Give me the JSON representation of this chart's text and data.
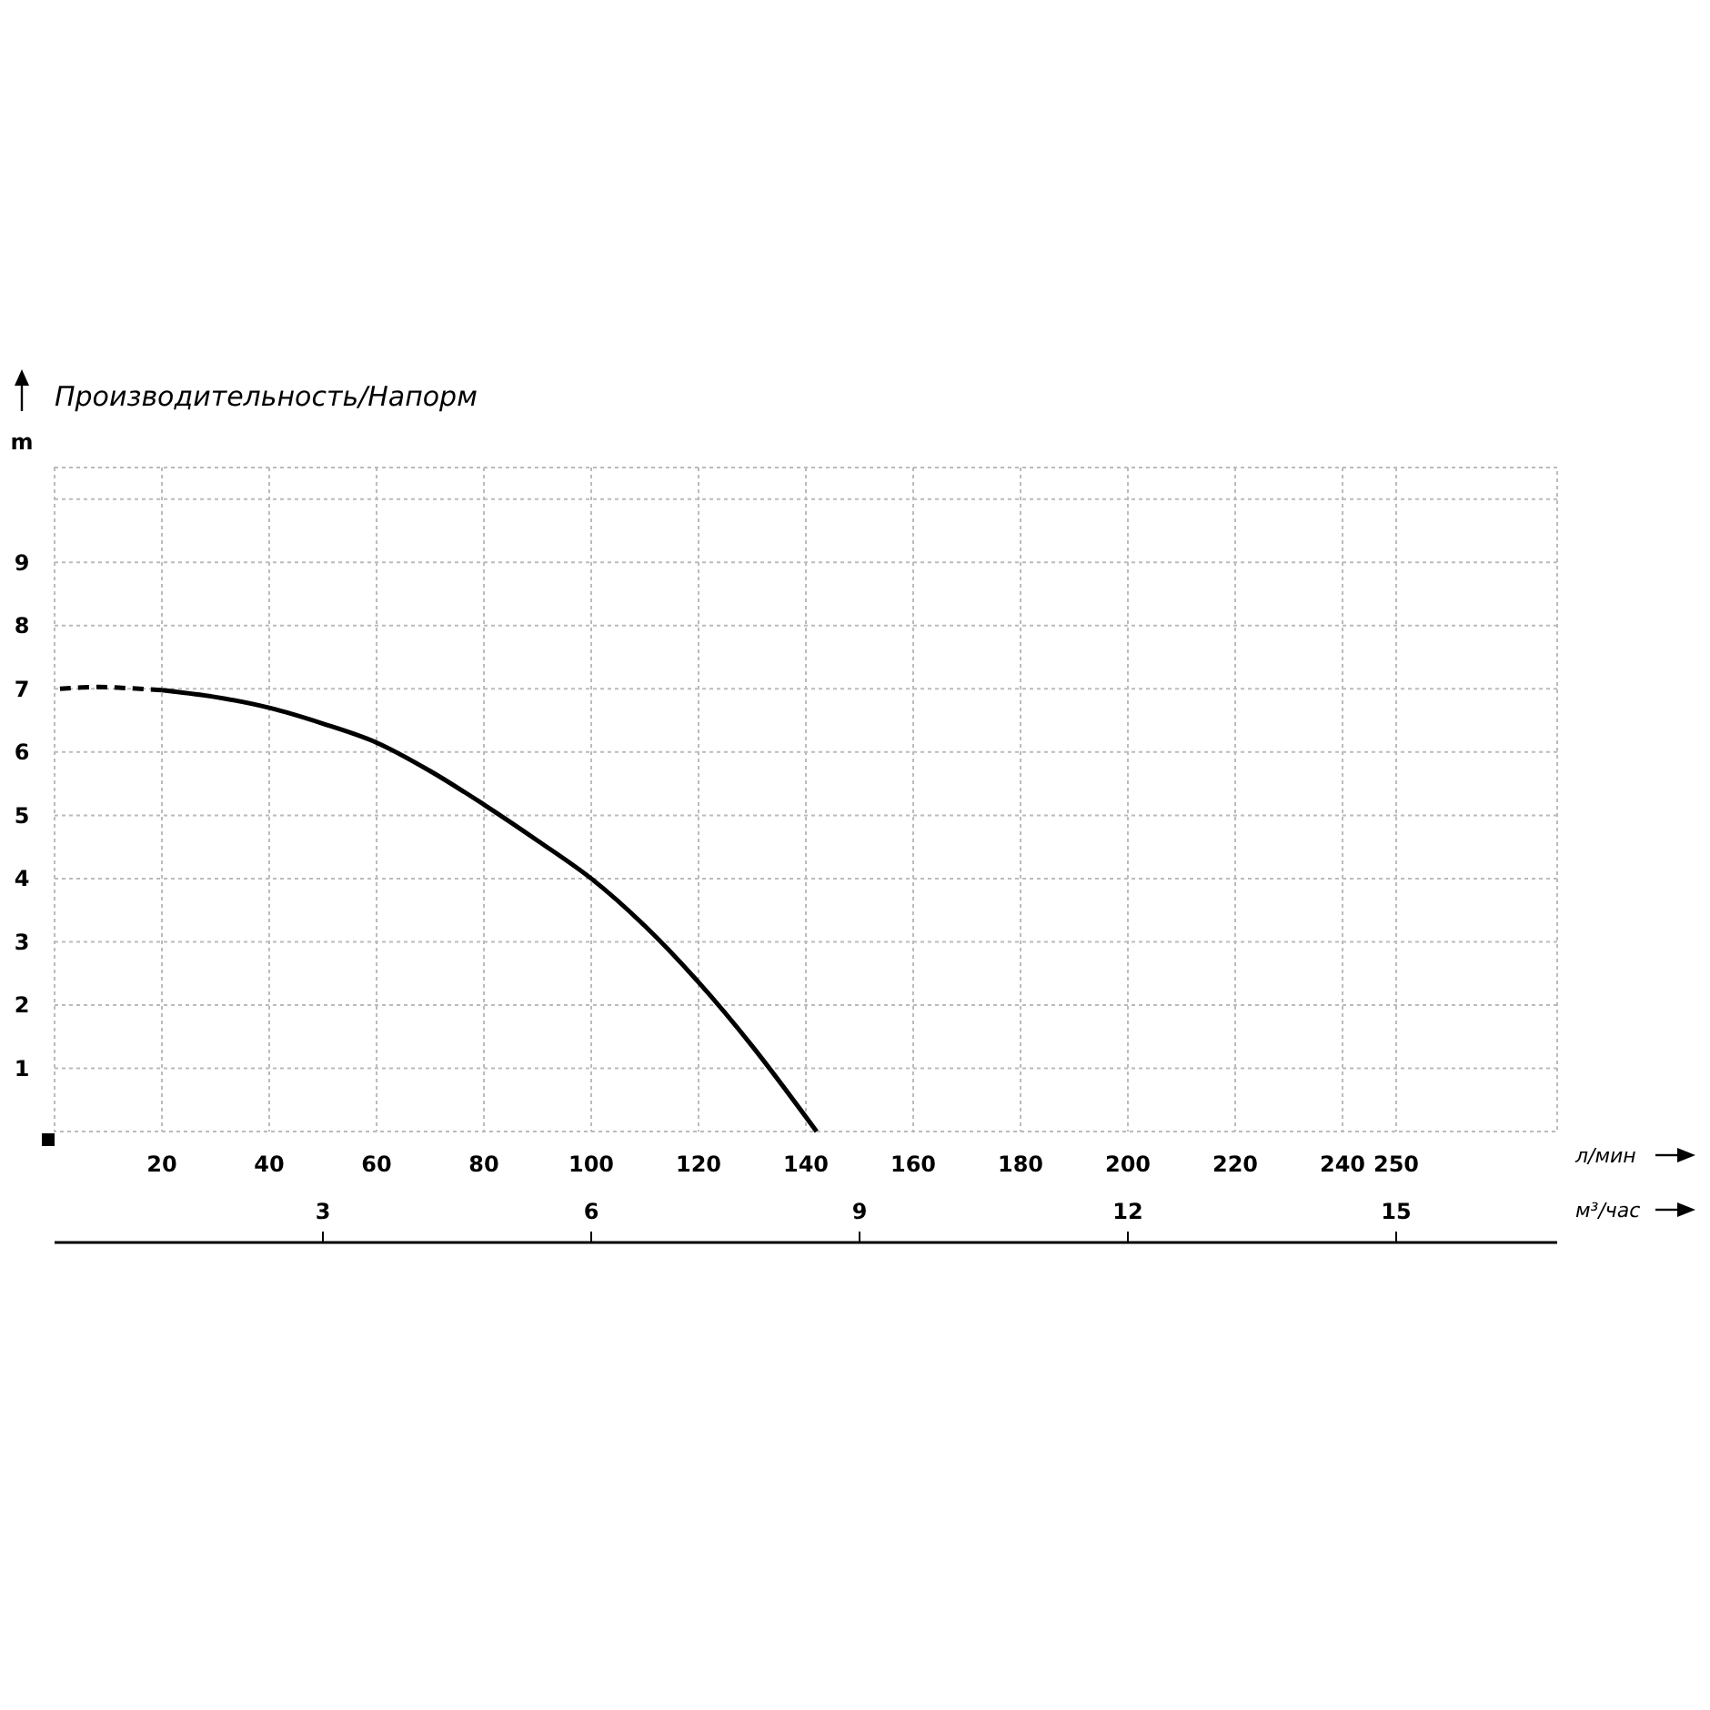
{
  "chart_data": {
    "type": "line",
    "title": "Производительность/Напорм",
    "ylabel": "m",
    "xlabel": "л/мин",
    "x2label": "м³/час",
    "series": [
      {
        "color": "#000000",
        "line_style": "dashed",
        "x": [
          1,
          8,
          14,
          20
        ],
        "values": [
          7.0,
          7.03,
          7.01,
          6.98
        ]
      },
      {
        "color": "#000000",
        "line_style": "solid",
        "x": [
          20,
          30,
          40,
          50,
          60,
          70,
          80,
          90,
          100,
          110,
          120,
          130,
          142
        ],
        "values": [
          6.98,
          6.87,
          6.7,
          6.45,
          6.15,
          5.7,
          5.17,
          4.6,
          4.0,
          3.25,
          2.36,
          1.35,
          0
        ]
      }
    ],
    "xlim": [
      0,
      280
    ],
    "xticks": [
      20,
      40,
      60,
      80,
      100,
      120,
      140,
      160,
      180,
      200,
      220,
      240,
      250
    ],
    "x2lim": [
      0,
      16.8
    ],
    "x2ticks": [
      3,
      6,
      9,
      12,
      15
    ],
    "ylim": [
      0,
      10.5
    ],
    "yticks": [
      1,
      2,
      3,
      4,
      5,
      6,
      7,
      8,
      9,
      {
        "value": 10,
        "label": null
      }
    ],
    "grid": true,
    "marker": "none"
  }
}
